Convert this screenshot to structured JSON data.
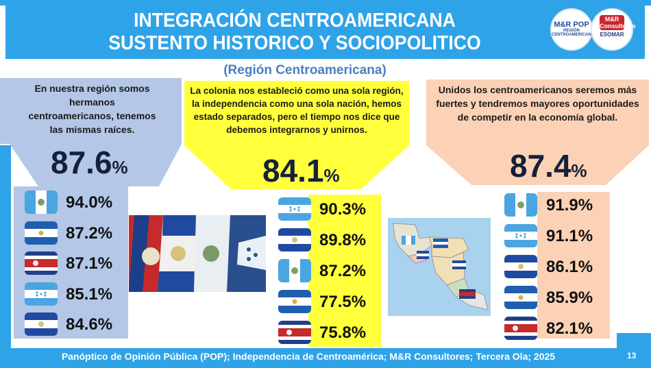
{
  "header": {
    "title_line1": "INTEGRACIÓN CENTROAMERICANA",
    "title_line2": "SUSTENTO HISTORICO Y SOCIOPOLITICO",
    "subtitle": "(Región Centroamericana)"
  },
  "logos": {
    "left_big": "M&R POP",
    "left_small": "REGIÓN CENTROAMERICANA",
    "right_badge": "M&R Consultores",
    "right_small": "ESOMAR"
  },
  "colors": {
    "accent_blue": "#2fa3e8",
    "panel_blue": "#b4c7e7",
    "panel_yellow": "#ffff3b",
    "panel_peach": "#fbd2b6"
  },
  "chart_data": [
    {
      "type": "table",
      "statement": "En nuestra región somos hermanos centroamericanos, tenemos las mismas raíces.",
      "total": "87.6",
      "total_unit": "%",
      "rows": [
        {
          "flag": "guatemala-flag",
          "value": "94.0%"
        },
        {
          "flag": "nicaragua-flag",
          "value": "87.2%"
        },
        {
          "flag": "costa-rica-flag",
          "value": "87.1%"
        },
        {
          "flag": "honduras-flag",
          "value": "85.1%"
        },
        {
          "flag": "el-salvador-flag",
          "value": "84.6%"
        }
      ]
    },
    {
      "type": "table",
      "statement": "La colonia nos estableció como una sola región, la independencia como una sola nación, hemos estado separados, pero el tiempo nos dice que debemos integrarnos y unirnos.",
      "total": "84.1",
      "total_unit": "%",
      "rows": [
        {
          "flag": "honduras-flag",
          "value": "90.3%"
        },
        {
          "flag": "el-salvador-flag",
          "value": "89.8%"
        },
        {
          "flag": "guatemala-flag",
          "value": "87.2%"
        },
        {
          "flag": "nicaragua-flag",
          "value": "77.5%"
        },
        {
          "flag": "costa-rica-flag",
          "value": "75.8%"
        }
      ]
    },
    {
      "type": "table",
      "statement": "Unidos los centroamericanos seremos más fuertes y tendremos mayores oportunidades de competir en la economía global.",
      "total": "87.4",
      "total_unit": "%",
      "rows": [
        {
          "flag": "guatemala-flag",
          "value": "91.9%"
        },
        {
          "flag": "honduras-flag",
          "value": "91.1%"
        },
        {
          "flag": "el-salvador-flag",
          "value": "86.1%"
        },
        {
          "flag": "nicaragua-flag",
          "value": "85.9%"
        },
        {
          "flag": "costa-rica-flag",
          "value": "82.1%"
        }
      ]
    }
  ],
  "footer": {
    "source": "Panóptico de Opinión Pública (POP); Independencia de Centroamérica; M&R Consultores; Tercera Ola; 2025",
    "page": "13"
  }
}
